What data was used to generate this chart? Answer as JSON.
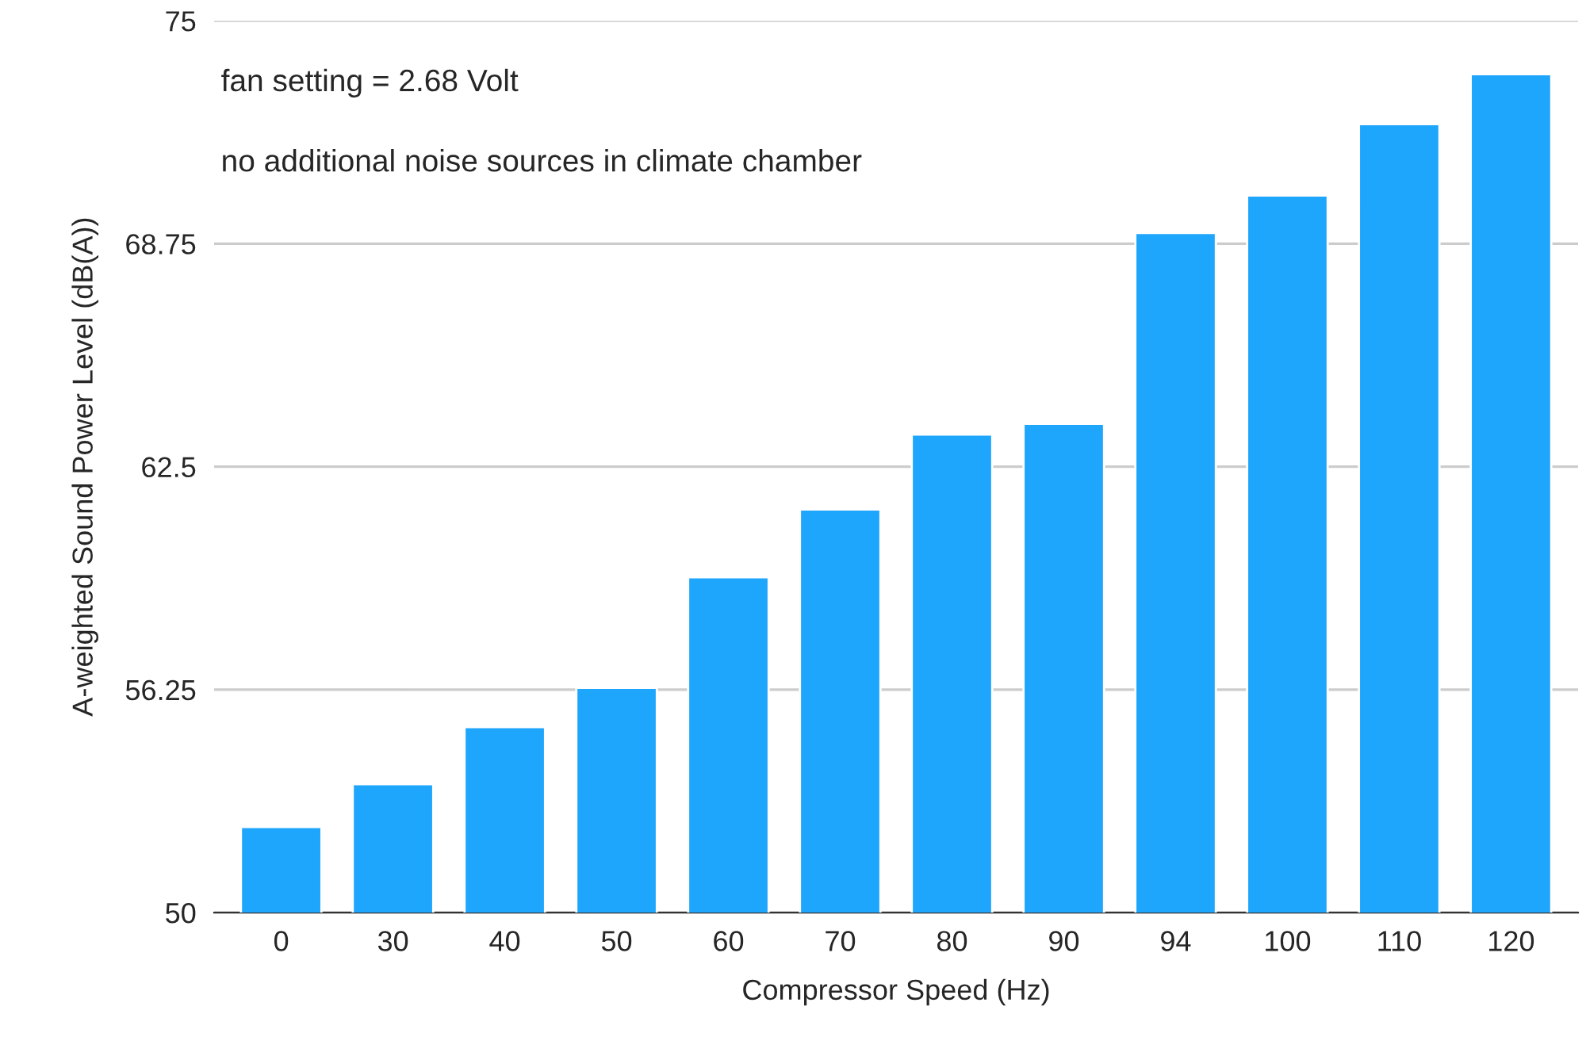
{
  "chart_data": {
    "type": "bar",
    "xlabel": "Compressor Speed (Hz)",
    "ylabel": "A-weighted Sound Power Level (dB(A))",
    "categories": [
      "0",
      "30",
      "40",
      "50",
      "60",
      "70",
      "80",
      "90",
      "94",
      "100",
      "110",
      "120"
    ],
    "values": [
      52.4,
      53.6,
      55.2,
      56.3,
      59.4,
      61.3,
      63.4,
      63.7,
      69.05,
      70.1,
      72.1,
      73.5
    ],
    "color": "#1ea5fc",
    "ylim": [
      50,
      75
    ],
    "yticks": [
      50,
      56.25,
      62.5,
      68.75,
      75
    ],
    "grid": "y",
    "annotations": [
      "fan setting = 2.68 Volt",
      "no additional noise sources in climate chamber"
    ]
  }
}
